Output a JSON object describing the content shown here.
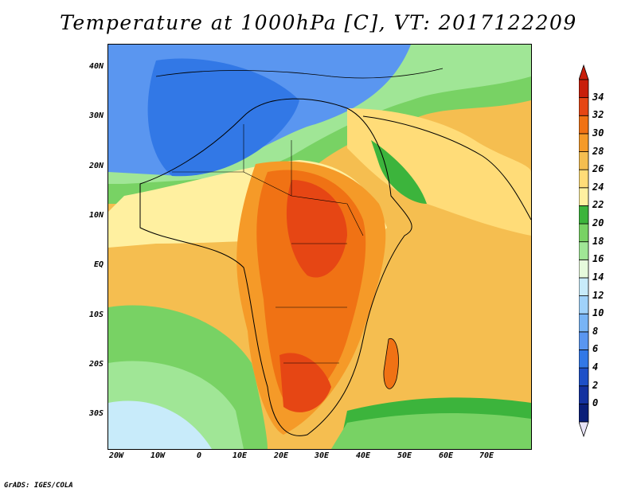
{
  "title": "Temperature at 1000hPa [C], VT: 2017122209",
  "credit": "GrADS: IGES/COLA",
  "lat_labels": [
    "40N",
    "30N",
    "20N",
    "10N",
    "EQ",
    "10S",
    "20S",
    "30S"
  ],
  "lon_labels": [
    "20W",
    "10W",
    "0",
    "10E",
    "20E",
    "30E",
    "40E",
    "50E",
    "60E",
    "70E"
  ],
  "colorbar": {
    "labels": [
      "0",
      "2",
      "4",
      "6",
      "8",
      "10",
      "12",
      "14",
      "16",
      "18",
      "20",
      "22",
      "24",
      "26",
      "28",
      "30",
      "32",
      "34"
    ],
    "colors": [
      "#0a1e78",
      "#1432a0",
      "#1e50c8",
      "#3278e6",
      "#5a96f0",
      "#78b4f5",
      "#a0d2fa",
      "#c8ebfa",
      "#e6fadc",
      "#a0e696",
      "#78d264",
      "#3cb43c",
      "#fff0a0",
      "#ffdc78",
      "#f5be50",
      "#f59a28",
      "#f07214",
      "#e64614",
      "#c81e0a"
    ],
    "under_color": "#e8e4f8",
    "over_color": "#c81e0a"
  }
}
